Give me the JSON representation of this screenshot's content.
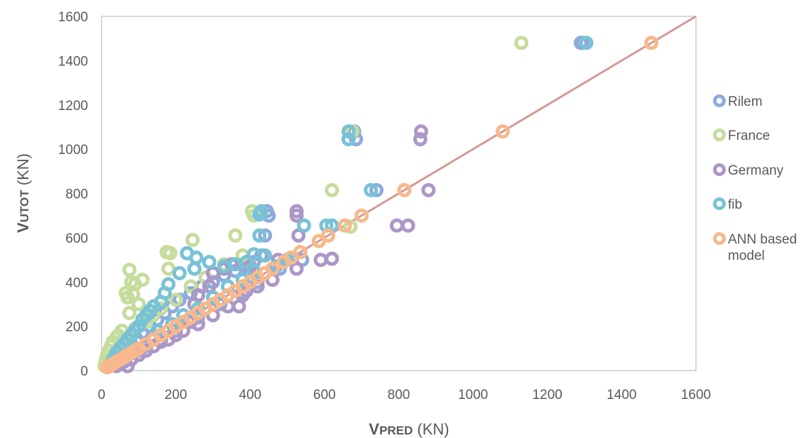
{
  "chart_data": {
    "type": "scatter",
    "x_axis": {
      "label_initial": "V",
      "label_rest": "PRED",
      "label_unit": " (KN)",
      "range": [
        0,
        1600
      ],
      "ticks": [
        "0",
        "200",
        "400",
        "600",
        "800",
        "1000",
        "1200",
        "1400",
        "1600"
      ]
    },
    "y_axis": {
      "label_initial": "V",
      "label_rest": "UTOT",
      "label_unit": " (KN)",
      "range": [
        0,
        1600
      ],
      "ticks": [
        "0",
        "200",
        "400",
        "600",
        "800",
        "1000",
        "1200",
        "1400",
        "1600"
      ]
    },
    "grid": false,
    "legend_position": "right",
    "reference_line": {
      "from": [
        0,
        0
      ],
      "to": [
        1600,
        1600
      ],
      "color": "#d49a94"
    },
    "series": [
      {
        "name": "Rilem",
        "color": "#8faadc",
        "points": [
          [
            1290,
            1480
          ],
          [
            1295,
            1480
          ],
          [
            680,
            1080
          ],
          [
            685,
            1045
          ],
          [
            445,
            720
          ],
          [
            450,
            700
          ],
          [
            440,
            610
          ],
          [
            430,
            520
          ],
          [
            410,
            490
          ],
          [
            390,
            470
          ],
          [
            360,
            450
          ],
          [
            330,
            430
          ],
          [
            300,
            400
          ],
          [
            270,
            380
          ],
          [
            240,
            350
          ],
          [
            210,
            320
          ],
          [
            190,
            290
          ],
          [
            170,
            260
          ],
          [
            150,
            230
          ],
          [
            130,
            200
          ],
          [
            110,
            170
          ],
          [
            95,
            140
          ],
          [
            80,
            120
          ],
          [
            65,
            100
          ],
          [
            50,
            80
          ],
          [
            40,
            60
          ],
          [
            30,
            40
          ],
          [
            20,
            25
          ],
          [
            15,
            15
          ],
          [
            100,
            90
          ],
          [
            120,
            110
          ],
          [
            160,
            140
          ],
          [
            200,
            180
          ],
          [
            260,
            240
          ],
          [
            320,
            300
          ],
          [
            380,
            350
          ],
          [
            420,
            400
          ],
          [
            480,
            460
          ],
          [
            540,
            500
          ],
          [
            740,
            815
          ]
        ]
      },
      {
        "name": "France",
        "color": "#c5dc9c",
        "points": [
          [
            1130,
            1480
          ],
          [
            620,
            815
          ],
          [
            675,
            1080
          ],
          [
            670,
            650
          ],
          [
            405,
            720
          ],
          [
            410,
            700
          ],
          [
            360,
            610
          ],
          [
            245,
            590
          ],
          [
            175,
            535
          ],
          [
            185,
            530
          ],
          [
            75,
            455
          ],
          [
            180,
            460
          ],
          [
            110,
            410
          ],
          [
            80,
            400
          ],
          [
            90,
            390
          ],
          [
            65,
            350
          ],
          [
            85,
            345
          ],
          [
            70,
            330
          ],
          [
            100,
            300
          ],
          [
            75,
            260
          ],
          [
            55,
            180
          ],
          [
            45,
            160
          ],
          [
            40,
            150
          ],
          [
            30,
            130
          ],
          [
            25,
            110
          ],
          [
            20,
            90
          ],
          [
            15,
            70
          ],
          [
            12,
            50
          ],
          [
            10,
            35
          ],
          [
            8,
            20
          ],
          [
            50,
            120
          ],
          [
            60,
            140
          ],
          [
            90,
            190
          ],
          [
            120,
            220
          ],
          [
            140,
            250
          ],
          [
            160,
            280
          ],
          [
            200,
            320
          ],
          [
            240,
            380
          ],
          [
            280,
            420
          ],
          [
            330,
            480
          ],
          [
            380,
            520
          ]
        ]
      },
      {
        "name": "Germany",
        "color": "#ac97c6",
        "points": [
          [
            860,
            1080
          ],
          [
            858,
            1045
          ],
          [
            880,
            815
          ],
          [
            795,
            655
          ],
          [
            825,
            655
          ],
          [
            525,
            720
          ],
          [
            525,
            700
          ],
          [
            530,
            610
          ],
          [
            525,
            460
          ],
          [
            590,
            500
          ],
          [
            620,
            505
          ],
          [
            475,
            500
          ],
          [
            400,
            470
          ],
          [
            390,
            360
          ],
          [
            370,
            290
          ],
          [
            350,
            480
          ],
          [
            330,
            460
          ],
          [
            300,
            440
          ],
          [
            290,
            380
          ],
          [
            260,
            340
          ],
          [
            250,
            300
          ],
          [
            240,
            220
          ],
          [
            220,
            180
          ],
          [
            200,
            160
          ],
          [
            180,
            140
          ],
          [
            160,
            130
          ],
          [
            140,
            110
          ],
          [
            120,
            90
          ],
          [
            100,
            70
          ],
          [
            80,
            50
          ],
          [
            70,
            20
          ],
          [
            60,
            40
          ],
          [
            50,
            30
          ],
          [
            40,
            20
          ],
          [
            260,
            210
          ],
          [
            300,
            250
          ],
          [
            340,
            290
          ],
          [
            380,
            340
          ],
          [
            420,
            380
          ],
          [
            460,
            410
          ]
        ]
      },
      {
        "name": "fib",
        "color": "#78c2d6",
        "points": [
          [
            1305,
            1480
          ],
          [
            665,
            1080
          ],
          [
            665,
            1045
          ],
          [
            725,
            815
          ],
          [
            545,
            655
          ],
          [
            605,
            655
          ],
          [
            620,
            655
          ],
          [
            430,
            720
          ],
          [
            425,
            705
          ],
          [
            425,
            610
          ],
          [
            410,
            525
          ],
          [
            440,
            520
          ],
          [
            390,
            490
          ],
          [
            360,
            480
          ],
          [
            330,
            470
          ],
          [
            290,
            490
          ],
          [
            250,
            460
          ],
          [
            230,
            530
          ],
          [
            255,
            510
          ],
          [
            210,
            440
          ],
          [
            180,
            390
          ],
          [
            170,
            350
          ],
          [
            160,
            310
          ],
          [
            140,
            290
          ],
          [
            130,
            270
          ],
          [
            120,
            250
          ],
          [
            110,
            230
          ],
          [
            100,
            200
          ],
          [
            90,
            180
          ],
          [
            80,
            160
          ],
          [
            70,
            140
          ],
          [
            60,
            120
          ],
          [
            50,
            100
          ],
          [
            40,
            80
          ],
          [
            35,
            60
          ],
          [
            30,
            45
          ],
          [
            25,
            30
          ],
          [
            20,
            20
          ],
          [
            150,
            180
          ],
          [
            190,
            210
          ],
          [
            220,
            250
          ],
          [
            260,
            280
          ],
          [
            300,
            330
          ],
          [
            340,
            380
          ],
          [
            380,
            410
          ],
          [
            410,
            450
          ],
          [
            470,
            470
          ],
          [
            500,
            500
          ]
        ]
      },
      {
        "name": "ANN based model",
        "color": "#f8b88b",
        "points": [
          [
            1480,
            1480
          ],
          [
            1080,
            1080
          ],
          [
            815,
            815
          ],
          [
            700,
            700
          ],
          [
            655,
            655
          ],
          [
            610,
            610
          ],
          [
            585,
            585
          ],
          [
            535,
            535
          ],
          [
            510,
            510
          ],
          [
            490,
            490
          ],
          [
            460,
            460
          ],
          [
            440,
            440
          ],
          [
            420,
            420
          ],
          [
            400,
            400
          ],
          [
            380,
            380
          ],
          [
            360,
            360
          ],
          [
            340,
            340
          ],
          [
            320,
            320
          ],
          [
            300,
            300
          ],
          [
            280,
            280
          ],
          [
            260,
            260
          ],
          [
            240,
            240
          ],
          [
            220,
            220
          ],
          [
            200,
            200
          ],
          [
            180,
            180
          ],
          [
            160,
            160
          ],
          [
            140,
            140
          ],
          [
            120,
            120
          ],
          [
            100,
            100
          ],
          [
            90,
            90
          ],
          [
            80,
            80
          ],
          [
            70,
            70
          ],
          [
            60,
            60
          ],
          [
            50,
            50
          ],
          [
            40,
            40
          ],
          [
            30,
            30
          ],
          [
            25,
            25
          ],
          [
            20,
            20
          ],
          [
            15,
            15
          ]
        ]
      }
    ]
  }
}
